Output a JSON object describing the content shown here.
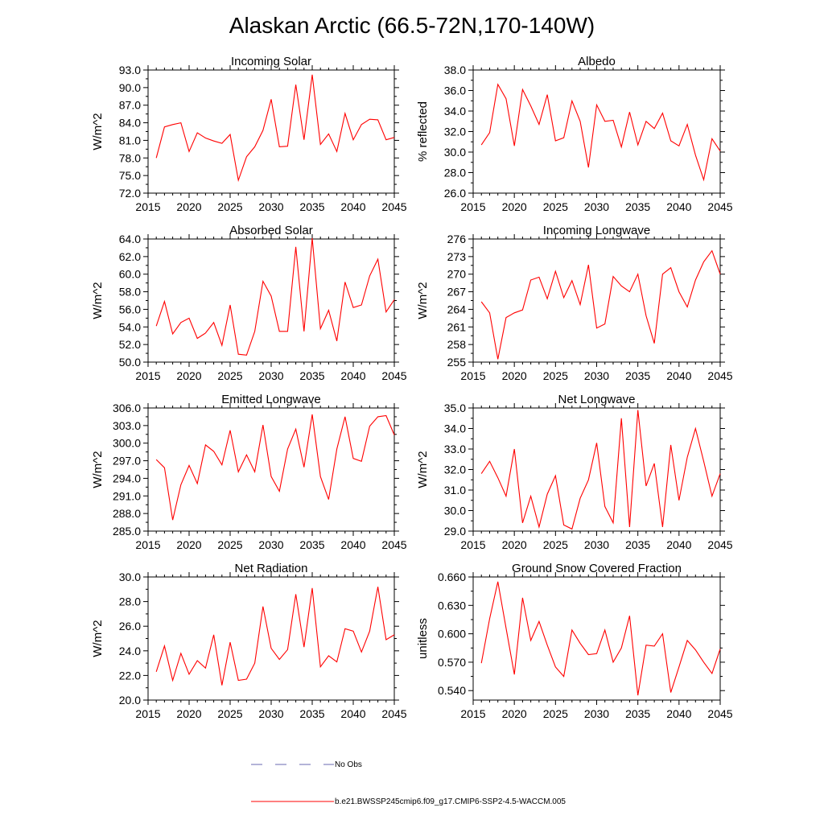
{
  "figure": {
    "title": "Alaskan Arctic (66.5-72N,170-140W)"
  },
  "legend": {
    "obs_label": "No Obs",
    "obs_color": "#6a6ab0",
    "model_label": "b.e21.BWSSP245cmip6.f09_g17.CMIP6-SSP2-4.5-WACCM.005",
    "model_color": "#ff0000"
  },
  "chart_data": [
    {
      "type": "line",
      "title": "Incoming Solar",
      "ylabel": "W/m^2",
      "ylim": [
        72,
        93
      ],
      "yticks": [
        "72.0",
        "75.0",
        "78.0",
        "81.0",
        "84.0",
        "87.0",
        "90.0",
        "93.0"
      ],
      "xlim": [
        2015,
        2045
      ],
      "xticks": [
        "2015",
        "2020",
        "2025",
        "2030",
        "2035",
        "2040",
        "2045"
      ],
      "x": [
        2016,
        2017,
        2018,
        2019,
        2020,
        2021,
        2022,
        2023,
        2024,
        2025,
        2026,
        2027,
        2028,
        2029,
        2030,
        2031,
        2032,
        2033,
        2034,
        2035,
        2036,
        2037,
        2038,
        2039,
        2040,
        2041,
        2042,
        2043,
        2044,
        2045
      ],
      "series": [
        {
          "values": [
            78.0,
            83.3,
            83.7,
            84.0,
            79.1,
            82.3,
            81.4,
            80.9,
            80.5,
            82.0,
            74.2,
            78.2,
            79.9,
            82.7,
            88.0,
            79.9,
            80.0,
            90.5,
            81.1,
            92.2,
            80.3,
            82.1,
            79.1,
            85.6,
            81.1,
            83.7,
            84.6,
            84.5,
            81.1,
            81.5
          ]
        }
      ]
    },
    {
      "type": "line",
      "title": "Albedo",
      "ylabel": "% reflected",
      "ylim": [
        26,
        38
      ],
      "yticks": [
        "26.0",
        "28.0",
        "30.0",
        "32.0",
        "34.0",
        "36.0",
        "38.0"
      ],
      "xlim": [
        2015,
        2045
      ],
      "xticks": [
        "2015",
        "2020",
        "2025",
        "2030",
        "2035",
        "2040",
        "2045"
      ],
      "x": [
        2016,
        2017,
        2018,
        2019,
        2020,
        2021,
        2022,
        2023,
        2024,
        2025,
        2026,
        2027,
        2028,
        2029,
        2030,
        2031,
        2032,
        2033,
        2034,
        2035,
        2036,
        2037,
        2038,
        2039,
        2040,
        2041,
        2042,
        2043,
        2044,
        2045
      ],
      "series": [
        {
          "values": [
            30.7,
            31.9,
            36.6,
            35.2,
            30.6,
            36.1,
            34.5,
            32.7,
            35.6,
            31.1,
            31.4,
            35.0,
            33.0,
            28.5,
            34.6,
            33.0,
            33.1,
            30.5,
            33.9,
            30.7,
            33.0,
            32.3,
            33.8,
            31.1,
            30.6,
            32.7,
            29.7,
            27.3,
            31.3,
            30.1
          ]
        }
      ]
    },
    {
      "type": "line",
      "title": "Absorbed Solar",
      "ylabel": "W/m^2",
      "ylim": [
        50,
        64
      ],
      "yticks": [
        "50.0",
        "52.0",
        "54.0",
        "56.0",
        "58.0",
        "60.0",
        "62.0",
        "64.0"
      ],
      "xlim": [
        2015,
        2045
      ],
      "xticks": [
        "2015",
        "2020",
        "2025",
        "2030",
        "2035",
        "2040",
        "2045"
      ],
      "x": [
        2016,
        2017,
        2018,
        2019,
        2020,
        2021,
        2022,
        2023,
        2024,
        2025,
        2026,
        2027,
        2028,
        2029,
        2030,
        2031,
        2032,
        2033,
        2034,
        2035,
        2036,
        2037,
        2038,
        2039,
        2040,
        2041,
        2042,
        2043,
        2044,
        2045
      ],
      "series": [
        {
          "values": [
            54.1,
            56.9,
            53.2,
            54.5,
            55.0,
            52.7,
            53.3,
            54.5,
            51.9,
            56.5,
            50.9,
            50.8,
            53.5,
            59.2,
            57.5,
            53.5,
            53.5,
            63.1,
            53.5,
            64.1,
            53.8,
            55.9,
            52.4,
            59.1,
            56.2,
            56.5,
            59.8,
            61.7,
            55.7,
            57.1
          ]
        }
      ]
    },
    {
      "type": "line",
      "title": "Incoming Longwave",
      "ylabel": "W/m^2",
      "ylim": [
        255,
        276
      ],
      "yticks": [
        "255",
        "258",
        "261",
        "264",
        "267",
        "270",
        "273",
        "276"
      ],
      "xlim": [
        2015,
        2045
      ],
      "xticks": [
        "2015",
        "2020",
        "2025",
        "2030",
        "2035",
        "2040",
        "2045"
      ],
      "x": [
        2016,
        2017,
        2018,
        2019,
        2020,
        2021,
        2022,
        2023,
        2024,
        2025,
        2026,
        2027,
        2028,
        2029,
        2030,
        2031,
        2032,
        2033,
        2034,
        2035,
        2036,
        2037,
        2038,
        2039,
        2040,
        2041,
        2042,
        2043,
        2044,
        2045
      ],
      "series": [
        {
          "values": [
            265.3,
            263.4,
            255.5,
            262.6,
            263.4,
            263.9,
            269.0,
            269.5,
            265.8,
            270.5,
            266.0,
            268.9,
            264.8,
            271.6,
            260.8,
            261.5,
            269.6,
            268.0,
            267.0,
            270.0,
            262.9,
            258.2,
            270.0,
            271.1,
            267.0,
            264.4,
            269.0,
            272.1,
            274.0,
            270.0
          ]
        }
      ]
    },
    {
      "type": "line",
      "title": "Emitted Longwave",
      "ylabel": "W/m^2",
      "ylim": [
        285,
        306
      ],
      "yticks": [
        "285.0",
        "288.0",
        "291.0",
        "294.0",
        "297.0",
        "300.0",
        "303.0",
        "306.0"
      ],
      "xlim": [
        2015,
        2045
      ],
      "xticks": [
        "2015",
        "2020",
        "2025",
        "2030",
        "2035",
        "2040",
        "2045"
      ],
      "x": [
        2016,
        2017,
        2018,
        2019,
        2020,
        2021,
        2022,
        2023,
        2024,
        2025,
        2026,
        2027,
        2028,
        2029,
        2030,
        2031,
        2032,
        2033,
        2034,
        2035,
        2036,
        2037,
        2038,
        2039,
        2040,
        2041,
        2042,
        2043,
        2044,
        2045
      ],
      "series": [
        {
          "values": [
            297.2,
            295.8,
            286.9,
            292.9,
            296.2,
            293.1,
            299.7,
            298.6,
            296.3,
            302.2,
            295.1,
            298.0,
            295.1,
            303.1,
            294.3,
            291.8,
            299.0,
            302.4,
            295.9,
            304.9,
            294.3,
            290.4,
            299.0,
            304.5,
            297.4,
            296.9,
            302.9,
            304.5,
            304.7,
            301.4
          ]
        }
      ]
    },
    {
      "type": "line",
      "title": "Net Longwave",
      "ylabel": "W/m^2",
      "ylim": [
        29,
        35
      ],
      "yticks": [
        "29.0",
        "30.0",
        "31.0",
        "32.0",
        "33.0",
        "34.0",
        "35.0"
      ],
      "xlim": [
        2015,
        2045
      ],
      "xticks": [
        "2015",
        "2020",
        "2025",
        "2030",
        "2035",
        "2040",
        "2045"
      ],
      "x": [
        2016,
        2017,
        2018,
        2019,
        2020,
        2021,
        2022,
        2023,
        2024,
        2025,
        2026,
        2027,
        2028,
        2029,
        2030,
        2031,
        2032,
        2033,
        2034,
        2035,
        2036,
        2037,
        2038,
        2039,
        2040,
        2041,
        2042,
        2043,
        2044,
        2045
      ],
      "series": [
        {
          "values": [
            31.8,
            32.4,
            31.6,
            30.7,
            33.0,
            29.4,
            30.7,
            29.2,
            30.8,
            31.7,
            29.3,
            29.1,
            30.6,
            31.5,
            33.3,
            30.2,
            29.4,
            34.5,
            29.2,
            34.9,
            31.2,
            32.3,
            29.2,
            33.2,
            30.5,
            32.6,
            34.0,
            32.4,
            30.7,
            31.8
          ]
        }
      ]
    },
    {
      "type": "line",
      "title": "Net Radiation",
      "ylabel": "W/m^2",
      "ylim": [
        20,
        30
      ],
      "yticks": [
        "20.0",
        "22.0",
        "24.0",
        "26.0",
        "28.0",
        "30.0"
      ],
      "xlim": [
        2015,
        2045
      ],
      "xticks": [
        "2015",
        "2020",
        "2025",
        "2030",
        "2035",
        "2040",
        "2045"
      ],
      "x": [
        2016,
        2017,
        2018,
        2019,
        2020,
        2021,
        2022,
        2023,
        2024,
        2025,
        2026,
        2027,
        2028,
        2029,
        2030,
        2031,
        2032,
        2033,
        2034,
        2035,
        2036,
        2037,
        2038,
        2039,
        2040,
        2041,
        2042,
        2043,
        2044,
        2045
      ],
      "series": [
        {
          "values": [
            22.3,
            24.4,
            21.6,
            23.8,
            22.1,
            23.2,
            22.6,
            25.3,
            21.2,
            24.7,
            21.6,
            21.7,
            23.0,
            27.6,
            24.2,
            23.3,
            24.1,
            28.6,
            24.3,
            29.1,
            22.7,
            23.6,
            23.1,
            25.8,
            25.6,
            23.9,
            25.6,
            29.2,
            24.9,
            25.3
          ]
        }
      ]
    },
    {
      "type": "line",
      "title": "Ground Snow Covered Fraction",
      "ylabel": "unitless",
      "ylim": [
        0.53,
        0.66
      ],
      "yticks": [
        "0.540",
        "0.570",
        "0.600",
        "0.630",
        "0.660"
      ],
      "ytick_values": [
        0.54,
        0.57,
        0.6,
        0.63,
        0.66
      ],
      "xlim": [
        2015,
        2045
      ],
      "xticks": [
        "2015",
        "2020",
        "2025",
        "2030",
        "2035",
        "2040",
        "2045"
      ],
      "x": [
        2016,
        2017,
        2018,
        2019,
        2020,
        2021,
        2022,
        2023,
        2024,
        2025,
        2026,
        2027,
        2028,
        2029,
        2030,
        2031,
        2032,
        2033,
        2034,
        2035,
        2036,
        2037,
        2038,
        2039,
        2040,
        2041,
        2042,
        2043,
        2044,
        2045
      ],
      "series": [
        {
          "values": [
            0.569,
            0.616,
            0.655,
            0.606,
            0.557,
            0.638,
            0.593,
            0.613,
            0.588,
            0.565,
            0.555,
            0.604,
            0.59,
            0.578,
            0.579,
            0.604,
            0.57,
            0.585,
            0.619,
            0.535,
            0.588,
            0.587,
            0.6,
            0.538,
            0.565,
            0.593,
            0.583,
            0.57,
            0.558,
            0.584
          ]
        }
      ]
    }
  ]
}
